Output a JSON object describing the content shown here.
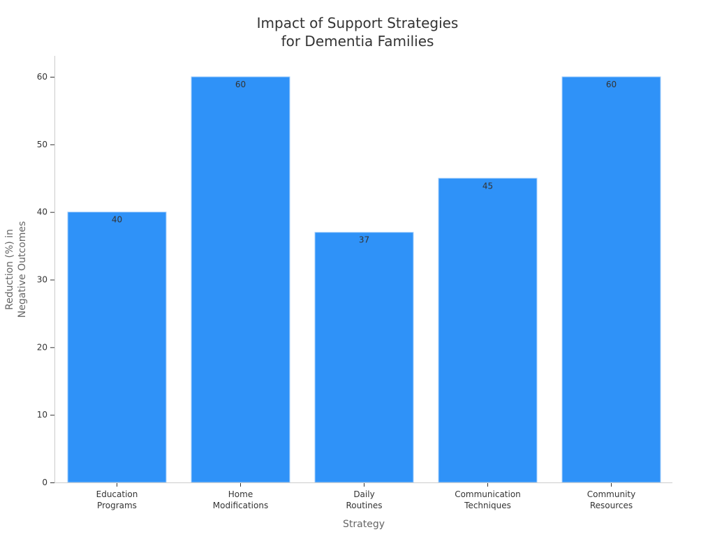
{
  "chart_data": {
    "type": "bar",
    "title": [
      "Impact of Support Strategies",
      "for Dementia Families"
    ],
    "xlabel": "Strategy",
    "ylabel": [
      "Reduction (%) in",
      "Negative Outcomes"
    ],
    "categories": [
      [
        "Education",
        "Programs"
      ],
      [
        "Home",
        "Modifications"
      ],
      [
        "Daily",
        "Routines"
      ],
      [
        "Communication",
        "Techniques"
      ],
      [
        "Community",
        "Resources"
      ]
    ],
    "values": [
      40,
      60,
      37,
      45,
      60
    ],
    "data_labels": [
      "40",
      "60",
      "37",
      "45",
      "60"
    ],
    "ylim": [
      0,
      63
    ],
    "yticks": [
      0,
      10,
      20,
      30,
      40,
      50,
      60
    ],
    "grid": false,
    "bar_color": "#2f92f8",
    "bar_edge_color": "#a9d1fb"
  }
}
